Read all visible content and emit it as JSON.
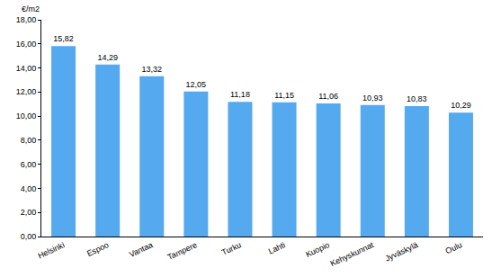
{
  "chart_data": {
    "type": "bar",
    "y_label": "€/m2",
    "categories": [
      "Helsinki",
      "Espoo",
      "Vantaa",
      "Tampere",
      "Turku",
      "Lahti",
      "Kuopio",
      "Kehyskunnat",
      "Jyväskylä",
      "Oulu"
    ],
    "values": [
      15.82,
      14.29,
      13.32,
      12.05,
      11.18,
      11.15,
      11.06,
      10.93,
      10.83,
      10.29
    ],
    "value_labels": [
      "15,82",
      "14,29",
      "13,32",
      "12,05",
      "11,18",
      "11,15",
      "11,06",
      "10,93",
      "10,83",
      "10,29"
    ],
    "color": "#55a9ee",
    "ylim": [
      0,
      18
    ],
    "yticks": [
      {
        "value": 0,
        "label": "0,00"
      },
      {
        "value": 2,
        "label": "2,00"
      },
      {
        "value": 4,
        "label": "4,00"
      },
      {
        "value": 6,
        "label": "6,00"
      },
      {
        "value": 8,
        "label": "8,00"
      },
      {
        "value": 10,
        "label": "10,00"
      },
      {
        "value": 12,
        "label": "12,00"
      },
      {
        "value": 14,
        "label": "14,00"
      },
      {
        "value": 16,
        "label": "16,00"
      },
      {
        "value": 18,
        "label": "18,00"
      }
    ],
    "grid": false,
    "data_labels": true
  }
}
